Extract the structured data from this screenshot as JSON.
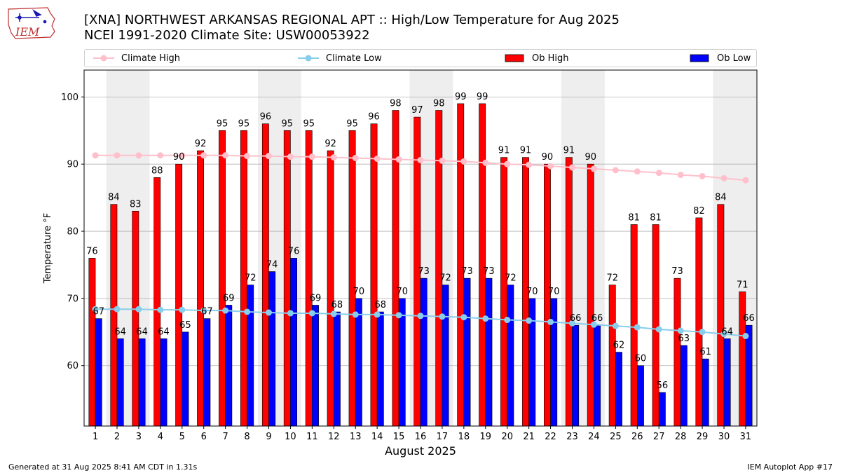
{
  "title_line1": "[XNA] NORTHWEST ARKANSAS REGIONAL APT :: High/Low Temperature for Aug 2025",
  "title_line2": "NCEI 1991-2020 Climate Site: USW00053922",
  "logo_text": "IEM",
  "footer_left": "Generated at 31 Aug 2025 8:41 AM CDT in 1.31s",
  "footer_right": "IEM Autoplot App #17",
  "colors": {
    "ob_high": "#ff0000",
    "ob_low": "#0000ff",
    "climate_high": "#ffc0cb",
    "climate_low": "#87ceeb",
    "weekend_shade": "#eeeeee",
    "grid": "#b0b0b0"
  },
  "legend": {
    "climate_high": "Climate High",
    "climate_low": "Climate Low",
    "ob_high": "Ob High",
    "ob_low": "Ob Low"
  },
  "chart_data": {
    "type": "bar",
    "xlabel": "August 2025",
    "ylabel": "Temperature °F",
    "ylim": [
      51,
      104
    ],
    "yticks": [
      60,
      70,
      80,
      90,
      100
    ],
    "grid": "horizontal",
    "legend_placement": "top",
    "days": [
      1,
      2,
      3,
      4,
      5,
      6,
      7,
      8,
      9,
      10,
      11,
      12,
      13,
      14,
      15,
      16,
      17,
      18,
      19,
      20,
      21,
      22,
      23,
      24,
      25,
      26,
      27,
      28,
      29,
      30,
      31
    ],
    "shaded_days": [
      [
        2,
        3
      ],
      [
        9,
        10
      ],
      [
        16,
        17
      ],
      [
        23,
        24
      ],
      [
        30,
        31
      ]
    ],
    "ob_high": [
      76,
      84,
      83,
      88,
      90,
      92,
      95,
      95,
      96,
      95,
      95,
      92,
      95,
      96,
      98,
      97,
      98,
      99,
      99,
      91,
      91,
      90,
      91,
      90,
      72,
      81,
      81,
      73,
      82,
      84,
      71
    ],
    "ob_low": [
      67,
      64,
      64,
      64,
      65,
      67,
      69,
      72,
      74,
      76,
      69,
      68,
      70,
      68,
      70,
      73,
      72,
      73,
      73,
      72,
      70,
      70,
      66,
      66,
      62,
      60,
      56,
      63,
      61,
      64,
      66
    ],
    "climate_high": [
      91.3,
      91.3,
      91.3,
      91.3,
      91.3,
      91.3,
      91.3,
      91.2,
      91.2,
      91.1,
      91.1,
      91.0,
      90.9,
      90.8,
      90.7,
      90.6,
      90.5,
      90.4,
      90.2,
      90.0,
      89.9,
      89.7,
      89.5,
      89.3,
      89.1,
      88.9,
      88.7,
      88.4,
      88.2,
      87.9,
      87.6
    ],
    "climate_low": [
      68.4,
      68.4,
      68.4,
      68.3,
      68.3,
      68.2,
      68.2,
      68.0,
      67.9,
      67.8,
      67.8,
      67.7,
      67.6,
      67.6,
      67.5,
      67.4,
      67.3,
      67.2,
      67.0,
      66.8,
      66.7,
      66.5,
      66.3,
      66.1,
      65.9,
      65.7,
      65.4,
      65.2,
      65.0,
      64.7,
      64.4
    ]
  }
}
